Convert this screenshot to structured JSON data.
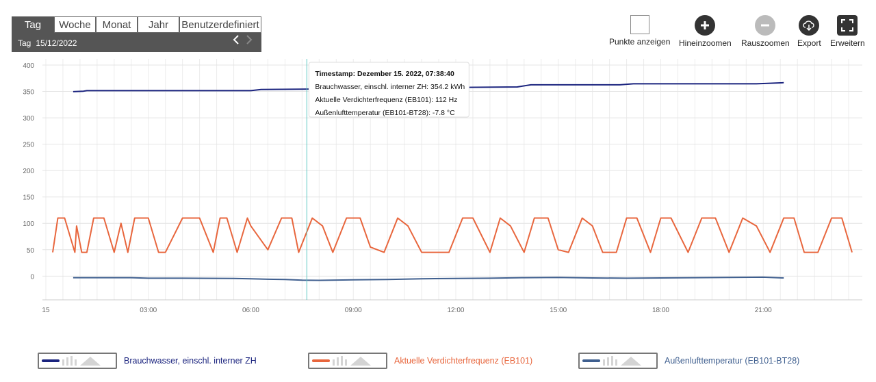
{
  "toolbar": {
    "tabs": [
      "Tag",
      "Woche",
      "Monat",
      "Jahr",
      "Benutzerdefiniert"
    ],
    "active_tab": "Tag",
    "range_label": "Tag",
    "range_date": "15/12/2022",
    "prev_icon": "chevron-left-icon",
    "next_icon": "chevron-right-icon"
  },
  "actions": {
    "points": "Punkte anzeigen",
    "zoom_in": "Hineinzoomen",
    "zoom_out": "Rauszoomen",
    "export": "Export",
    "expand": "Erweitern"
  },
  "chart_data": {
    "type": "line",
    "x_unit": "hours",
    "xlim": [
      -0.1,
      23.9
    ],
    "ylim": [
      -45,
      400
    ],
    "y_ticks": [
      0,
      50,
      100,
      150,
      200,
      250,
      300,
      350,
      400
    ],
    "x_ticks": [
      {
        "label": "15",
        "value": 0
      },
      {
        "label": "03:00",
        "value": 3
      },
      {
        "label": "06:00",
        "value": 6
      },
      {
        "label": "09:00",
        "value": 9
      },
      {
        "label": "12:00",
        "value": 12
      },
      {
        "label": "15:00",
        "value": 15
      },
      {
        "label": "18:00",
        "value": 18
      },
      {
        "label": "21:00",
        "value": 21
      }
    ],
    "grid": true,
    "legend_position": "bottom",
    "series": [
      {
        "name": "Brauchwasser, einschl. interner ZH",
        "color": "#1a237e",
        "x": [
          0.8,
          1.1,
          1.2,
          2.4,
          2.6,
          5.0,
          6.0,
          6.3,
          7.5,
          7.7,
          9.6,
          10.2,
          12.0,
          13.8,
          14.2,
          16.8,
          17.2,
          20.8,
          21.2,
          21.6
        ],
        "y": [
          349.5,
          350.5,
          351.5,
          351.5,
          351.5,
          351.5,
          351.5,
          353.5,
          354.2,
          354.5,
          355.5,
          357.5,
          357.5,
          358.5,
          362.5,
          362.5,
          364.5,
          364.5,
          365.5,
          366.5
        ]
      },
      {
        "name": "Aktuelle Verdichterfrequenz (EB101)",
        "color": "#e8663d",
        "x": [
          0.2,
          0.35,
          0.55,
          0.85,
          0.9,
          1.05,
          1.2,
          1.4,
          1.7,
          2.0,
          2.2,
          2.4,
          2.6,
          3.0,
          3.3,
          3.5,
          4.0,
          4.5,
          4.9,
          5.1,
          5.3,
          5.6,
          5.9,
          6.0,
          6.5,
          6.9,
          7.2,
          7.4,
          7.8,
          8.1,
          8.4,
          8.8,
          9.2,
          9.5,
          9.9,
          10.3,
          10.6,
          11.0,
          11.4,
          11.8,
          12.2,
          12.5,
          13.0,
          13.3,
          13.6,
          14.0,
          14.3,
          14.7,
          15.0,
          15.3,
          15.7,
          16.0,
          16.3,
          16.7,
          17.0,
          17.3,
          17.7,
          18.0,
          18.3,
          18.8,
          19.2,
          19.6,
          20.0,
          20.4,
          20.8,
          21.2,
          21.6,
          21.9,
          22.2,
          22.6,
          23.0,
          23.3,
          23.6
        ],
        "y": [
          45,
          110,
          110,
          45,
          95,
          45,
          45,
          110,
          110,
          45,
          100,
          45,
          110,
          110,
          45,
          45,
          110,
          110,
          45,
          110,
          110,
          45,
          110,
          95,
          50,
          110,
          110,
          45,
          110,
          95,
          45,
          110,
          110,
          55,
          45,
          110,
          95,
          45,
          45,
          45,
          110,
          110,
          45,
          110,
          95,
          45,
          110,
          110,
          50,
          45,
          110,
          95,
          45,
          45,
          110,
          110,
          45,
          110,
          110,
          45,
          110,
          110,
          45,
          110,
          95,
          45,
          110,
          110,
          45,
          45,
          110,
          110,
          45
        ]
      },
      {
        "name": "Außenlufttemperatur (EB101-BT28)",
        "color": "#3f5f8f",
        "x": [
          0.8,
          2.5,
          3.0,
          4.0,
          5.5,
          6.0,
          6.5,
          7.0,
          7.5,
          8.0,
          9.0,
          10.0,
          11.0,
          12.0,
          13.0,
          14.0,
          15.0,
          16.0,
          17.0,
          18.0,
          19.0,
          20.0,
          21.0,
          21.6
        ],
        "y": [
          -3,
          -3,
          -4,
          -4,
          -4.5,
          -5,
          -6,
          -6.5,
          -7.8,
          -8,
          -7,
          -6.5,
          -5,
          -4.5,
          -4,
          -3,
          -2.5,
          -3.5,
          -4,
          -3.5,
          -3,
          -2.5,
          -2,
          -3.5
        ]
      }
    ],
    "tooltip": {
      "x_value": 7.64,
      "lines": [
        "Timestamp: Dezember 15. 2022, 07:38:40",
        "Brauchwasser, einschl. interner ZH: 354.2 kWh",
        "Aktuelle Verdichterfrequenz (EB101): 112 Hz",
        "Außenlufttemperatur (EB101-BT28): -7.8 °C"
      ]
    }
  },
  "legend": [
    {
      "label": "Brauchwasser, einschl. interner ZH",
      "color": "#1a237e"
    },
    {
      "label": "Aktuelle Verdichterfrequenz (EB101)",
      "color": "#e8663d"
    },
    {
      "label": "Außenlufttemperatur (EB101-BT28)",
      "color": "#3f5f8f"
    }
  ]
}
